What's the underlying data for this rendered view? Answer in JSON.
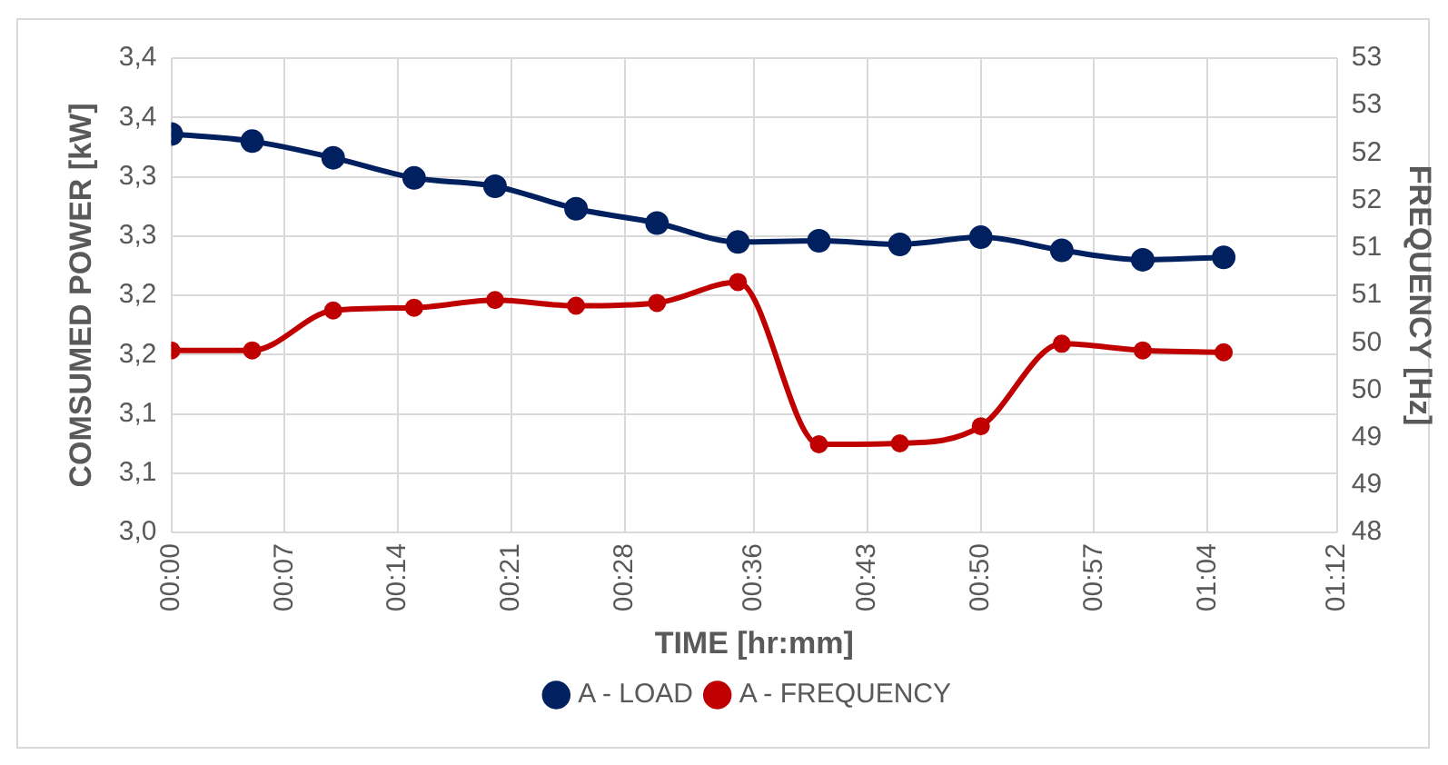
{
  "chart_data": {
    "type": "line",
    "xlabel": "TIME [hr:mm]",
    "ylabel": "COMSUMED POWER [kW]",
    "y2label": "FREQUENCY [Hz]",
    "x": [
      0,
      0.08333,
      0.16667,
      0.25,
      0.33333,
      0.41667,
      0.5,
      0.58333,
      0.66667,
      0.75,
      0.83333,
      0.91667,
      1,
      1.08333
    ],
    "series": [
      {
        "name": "A - LOAD",
        "color": "#002060",
        "marker": "circle",
        "values": [
          3.336,
          3.33,
          3.316,
          3.299,
          3.292,
          3.273,
          3.261,
          3.245,
          3.246,
          3.243,
          3.249,
          3.238,
          3.23,
          3.232
        ]
      },
      {
        "name": "A - FREQUENCY",
        "color": "#c00000",
        "marker": "circle",
        "axis": "y2",
        "values": [
          49.92,
          49.92,
          50.34,
          50.37,
          50.45,
          50.39,
          50.42,
          50.64,
          48.93,
          48.94,
          49.12,
          49.99,
          49.92,
          49.9
        ]
      }
    ],
    "xlim": [
      0,
      1.2
    ],
    "xticks": [
      {
        "value": 0,
        "label": "00:00"
      },
      {
        "value": 0.1167,
        "label": "00:07"
      },
      {
        "value": 0.2333,
        "label": "00:14"
      },
      {
        "value": 0.35,
        "label": "00:21"
      },
      {
        "value": 0.4667,
        "label": "00:28"
      },
      {
        "value": 0.6,
        "label": "00:36"
      },
      {
        "value": 0.7167,
        "label": "00:43"
      },
      {
        "value": 0.8333,
        "label": "00:50"
      },
      {
        "value": 0.95,
        "label": "00:57"
      },
      {
        "value": 1.0667,
        "label": "01:04"
      },
      {
        "value": 1.2,
        "label": "01:12"
      }
    ],
    "ylim": [
      3.0,
      3.4
    ],
    "yticks": [
      {
        "value": 3.0,
        "label": "3,0"
      },
      {
        "value": 3.05,
        "label": "3,1"
      },
      {
        "value": 3.1,
        "label": "3,1"
      },
      {
        "value": 3.15,
        "label": "3,2"
      },
      {
        "value": 3.2,
        "label": "3,2"
      },
      {
        "value": 3.25,
        "label": "3,3"
      },
      {
        "value": 3.3,
        "label": "3,3"
      },
      {
        "value": 3.35,
        "label": "3,4"
      },
      {
        "value": 3.4,
        "label": "3,4"
      }
    ],
    "y2lim": [
      48,
      53
    ],
    "y2ticks": [
      48,
      {
        "value": 48.5,
        "label": "49"
      },
      49,
      {
        "value": 49.5,
        "label": "50"
      },
      50,
      {
        "value": 50.5,
        "label": "51"
      },
      51,
      {
        "value": 51.5,
        "label": "52"
      },
      52,
      {
        "value": 52.5,
        "label": "53"
      },
      53
    ],
    "grid": true,
    "legend": "bottom",
    "line_style": "solid"
  }
}
